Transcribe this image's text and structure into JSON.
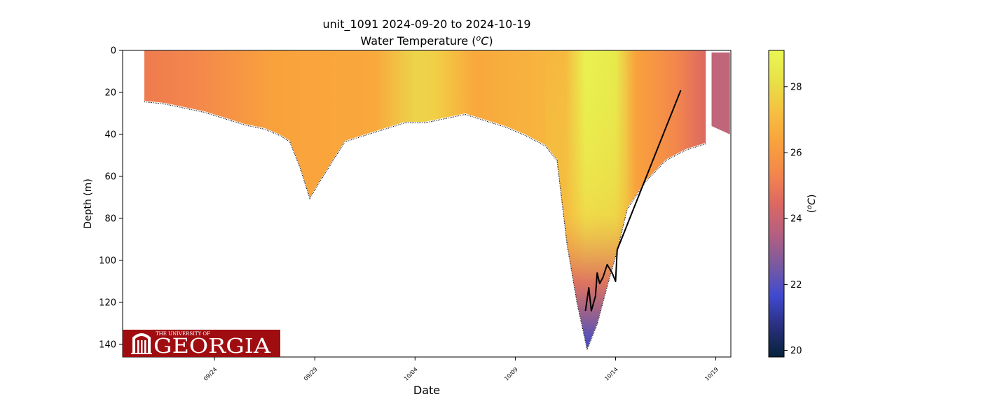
{
  "chart_data": {
    "type": "heatmap",
    "title_line1": "unit_1091 2024-09-20 to 2024-10-19",
    "title_line2_prefix": "Water Temperature (",
    "title_line2_unit_sup": "o",
    "title_line2_unit_main": "C",
    "title_line2_suffix": ")",
    "xlabel": "Date",
    "ylabel": "Depth (m)",
    "xlim": [
      "2024-09-19T10:00",
      "2024-10-19T18:00"
    ],
    "ylim": [
      146,
      0
    ],
    "y_inverted": true,
    "x_ticks": [
      "09/24",
      "09/29",
      "10/04",
      "10/09",
      "10/14",
      "10/19"
    ],
    "y_ticks": [
      0,
      20,
      40,
      60,
      80,
      100,
      120,
      140
    ],
    "colorbar": {
      "label_prefix": "(",
      "label_sup": "o",
      "label_main": "C",
      "label_suffix": ")",
      "range": [
        19.8,
        29.1
      ],
      "ticks": [
        20,
        22,
        24,
        26,
        28
      ],
      "colormap": "thermal",
      "stops": [
        "#04233a",
        "#2a2f7e",
        "#3f4ad0",
        "#7a5aa0",
        "#b45f80",
        "#dc6862",
        "#f3874c",
        "#f9a23c",
        "#f5c041",
        "#e8e147",
        "#e9f752"
      ]
    },
    "depth_profile": {
      "dates": [
        "2024-09-20T12:00",
        "2024-09-21T12:00",
        "2024-09-22T12:00",
        "2024-09-23T12:00",
        "2024-09-24T12:00",
        "2024-09-25T12:00",
        "2024-09-26T12:00",
        "2024-09-27T06:00",
        "2024-09-27T18:00",
        "2024-09-28T06:00",
        "2024-09-28T18:00",
        "2024-09-29T06:00",
        "2024-09-30T12:00",
        "2024-10-01T12:00",
        "2024-10-02T12:00",
        "2024-10-03T12:00",
        "2024-10-04T12:00",
        "2024-10-05T12:00",
        "2024-10-06T12:00",
        "2024-10-07T12:00",
        "2024-10-08T12:00",
        "2024-10-09T12:00",
        "2024-10-10T12:00",
        "2024-10-11T02:00",
        "2024-10-11T14:00",
        "2024-10-12T02:00",
        "2024-10-12T14:00",
        "2024-10-13T02:00",
        "2024-10-13T14:00",
        "2024-10-14T02:00",
        "2024-10-14T14:00",
        "2024-10-15T12:00",
        "2024-10-16T12:00",
        "2024-10-17T12:00",
        "2024-10-18T12:00"
      ],
      "bottom_depth_m": [
        24,
        25,
        27,
        29,
        32,
        35,
        37,
        40,
        43,
        55,
        70,
        62,
        43,
        40,
        37,
        34,
        34,
        32,
        30,
        33,
        36,
        40,
        45,
        52,
        92,
        120,
        142,
        130,
        112,
        95,
        75,
        62,
        52,
        47,
        44
      ]
    },
    "depth_profile_2": {
      "dates": [
        "2024-10-19T00:00",
        "2024-10-19T12:00"
      ],
      "top_depth_m": [
        1,
        1
      ],
      "bottom_depth_m": [
        36,
        40
      ]
    },
    "trend_line": {
      "dates": [
        "2024-10-12T12:00",
        "2024-10-12T16:00",
        "2024-10-12T19:00",
        "2024-10-13T00:00",
        "2024-10-13T02:00",
        "2024-10-13T05:00",
        "2024-10-13T09:00",
        "2024-10-13T14:00",
        "2024-10-13T20:00",
        "2024-10-14T00:00",
        "2024-10-14T02:00",
        "2024-10-17T06:00"
      ],
      "depth_m": [
        124,
        113,
        124,
        117,
        106,
        111,
        108,
        102,
        106,
        110,
        95,
        19
      ]
    },
    "color_notes": "surface to ~30 m mostly 27-28 C (orange), early record 26-27 C, 10/03-10/05 surface ~28.5 C (yellow), 10/12-10/14 water column 28-29 C with cooler 22-25 C at the deepest samples, after 10/18 ~25 C"
  },
  "logo": {
    "small_text": "THE UNIVERSITY OF",
    "big_text": "GEORGIA",
    "background": "#a00d11",
    "text_color": "#ffffff"
  }
}
